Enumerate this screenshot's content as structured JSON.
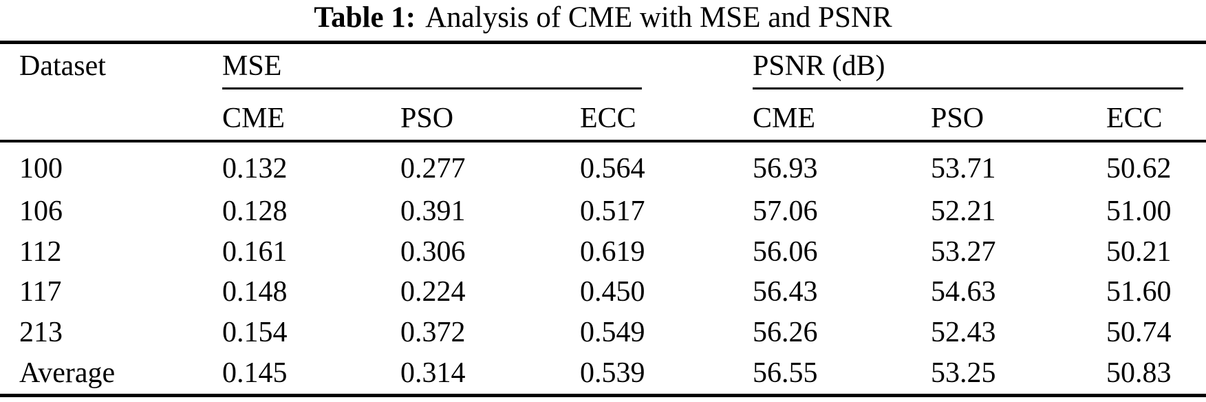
{
  "caption": {
    "label": "Table 1:",
    "text": "Analysis of CME with MSE and PSNR"
  },
  "table": {
    "corner_header": "Dataset",
    "groups": [
      {
        "label": "MSE"
      },
      {
        "label": "PSNR (dB)"
      }
    ],
    "sub_headers": [
      "CME",
      "PSO",
      "ECC",
      "CME",
      "PSO",
      "ECC"
    ],
    "rows": [
      {
        "dataset": "100",
        "values": [
          "0.132",
          "0.277",
          "0.564",
          "56.93",
          "53.71",
          "50.62"
        ]
      },
      {
        "dataset": "106",
        "values": [
          "0.128",
          "0.391",
          "0.517",
          "57.06",
          "52.21",
          "51.00"
        ]
      },
      {
        "dataset": "112",
        "values": [
          "0.161",
          "0.306",
          "0.619",
          "56.06",
          "53.27",
          "50.21"
        ]
      },
      {
        "dataset": "117",
        "values": [
          "0.148",
          "0.224",
          "0.450",
          "56.43",
          "54.63",
          "51.60"
        ]
      },
      {
        "dataset": "213",
        "values": [
          "0.154",
          "0.372",
          "0.549",
          "56.26",
          "52.43",
          "50.74"
        ]
      },
      {
        "dataset": "Average",
        "values": [
          "0.145",
          "0.314",
          "0.539",
          "56.55",
          "53.25",
          "50.83"
        ]
      }
    ]
  },
  "colors": {
    "text": "#000000",
    "background": "#ffffff",
    "rule": "#000000"
  }
}
